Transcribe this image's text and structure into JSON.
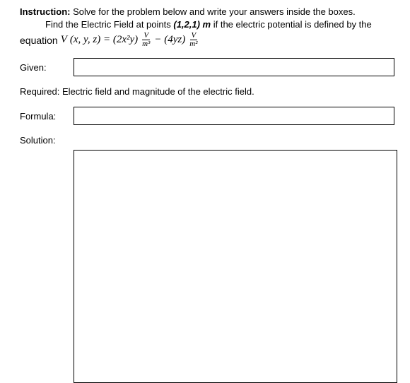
{
  "instruction": {
    "label": "Instruction:",
    "text": " Solve for the problem below and write your answers inside the boxes.",
    "line2_prefix": "Find the Electric Field at points ",
    "point": "(1,2,1) m",
    "line2_suffix": " if the electric potential is defined by the"
  },
  "equation": {
    "prefix": "equation ",
    "V": "V",
    "args": "(x, y, z) = (2x²y)",
    "frac1_num": "V",
    "frac1_den": "m³",
    "minus": " − (4yz) ",
    "frac2_num": "V",
    "frac2_den": "m²"
  },
  "labels": {
    "given": "Given:",
    "required_label": "Required:",
    "required_text": " Electric field and magnitude of the electric field.",
    "formula": "Formula:",
    "solution": "Solution:"
  },
  "style": {
    "box_border": "#000000",
    "text_color": "#000000",
    "background": "#ffffff",
    "font_size_body": 13,
    "given_box_height": 24,
    "formula_box_height": 24,
    "solution_box_width": 456,
    "solution_box_height": 328
  }
}
